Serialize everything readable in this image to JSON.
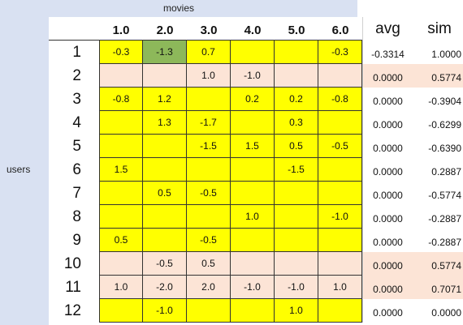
{
  "labels": {
    "movies": "movies",
    "users": "users",
    "avg": "avg",
    "sim": "sim"
  },
  "movie_columns": [
    "1.0",
    "2.0",
    "3.0",
    "4.0",
    "5.0",
    "6.0"
  ],
  "rows": [
    {
      "id": "1",
      "highlight": false,
      "cells": [
        "-0.3",
        "-1.3",
        "0.7",
        "",
        "",
        "-0.3"
      ],
      "avg": "-0.3314",
      "sim": "1.0000"
    },
    {
      "id": "2",
      "highlight": true,
      "cells": [
        "",
        "",
        "1.0",
        "-1.0",
        "",
        ""
      ],
      "avg": "0.0000",
      "sim": "0.5774"
    },
    {
      "id": "3",
      "highlight": false,
      "cells": [
        "-0.8",
        "1.2",
        "",
        "0.2",
        "0.2",
        "-0.8"
      ],
      "avg": "0.0000",
      "sim": "-0.3904"
    },
    {
      "id": "4",
      "highlight": false,
      "cells": [
        "",
        "1.3",
        "-1.7",
        "",
        "0.3",
        ""
      ],
      "avg": "0.0000",
      "sim": "-0.6299"
    },
    {
      "id": "5",
      "highlight": false,
      "cells": [
        "",
        "",
        "-1.5",
        "1.5",
        "0.5",
        "-0.5"
      ],
      "avg": "0.0000",
      "sim": "-0.6390"
    },
    {
      "id": "6",
      "highlight": false,
      "cells": [
        "1.5",
        "",
        "",
        "",
        "-1.5",
        ""
      ],
      "avg": "0.0000",
      "sim": "0.2887"
    },
    {
      "id": "7",
      "highlight": false,
      "cells": [
        "",
        "0.5",
        "-0.5",
        "",
        "",
        ""
      ],
      "avg": "0.0000",
      "sim": "-0.5774"
    },
    {
      "id": "8",
      "highlight": false,
      "cells": [
        "",
        "",
        "",
        "1.0",
        "",
        "-1.0"
      ],
      "avg": "0.0000",
      "sim": "-0.2887"
    },
    {
      "id": "9",
      "highlight": false,
      "cells": [
        "0.5",
        "",
        "-0.5",
        "",
        "",
        ""
      ],
      "avg": "0.0000",
      "sim": "-0.2887"
    },
    {
      "id": "10",
      "highlight": true,
      "cells": [
        "",
        "-0.5",
        "0.5",
        "",
        "",
        ""
      ],
      "avg": "0.0000",
      "sim": "0.5774"
    },
    {
      "id": "11",
      "highlight": true,
      "cells": [
        "1.0",
        "-2.0",
        "2.0",
        "-1.0",
        "-1.0",
        "1.0"
      ],
      "avg": "0.0000",
      "sim": "0.7071"
    },
    {
      "id": "12",
      "highlight": false,
      "cells": [
        "",
        "-1.0",
        "",
        "",
        "1.0",
        ""
      ],
      "avg": "0.0000",
      "sim": "0.0000"
    }
  ],
  "selected_cell": {
    "row": "1",
    "col": "2.0"
  },
  "colors": {
    "rating_fill": "#ffff00",
    "highlight_row_fill": "#fce4d6",
    "selected_fill": "#8db85a",
    "header_band": "#d9e1f2"
  }
}
